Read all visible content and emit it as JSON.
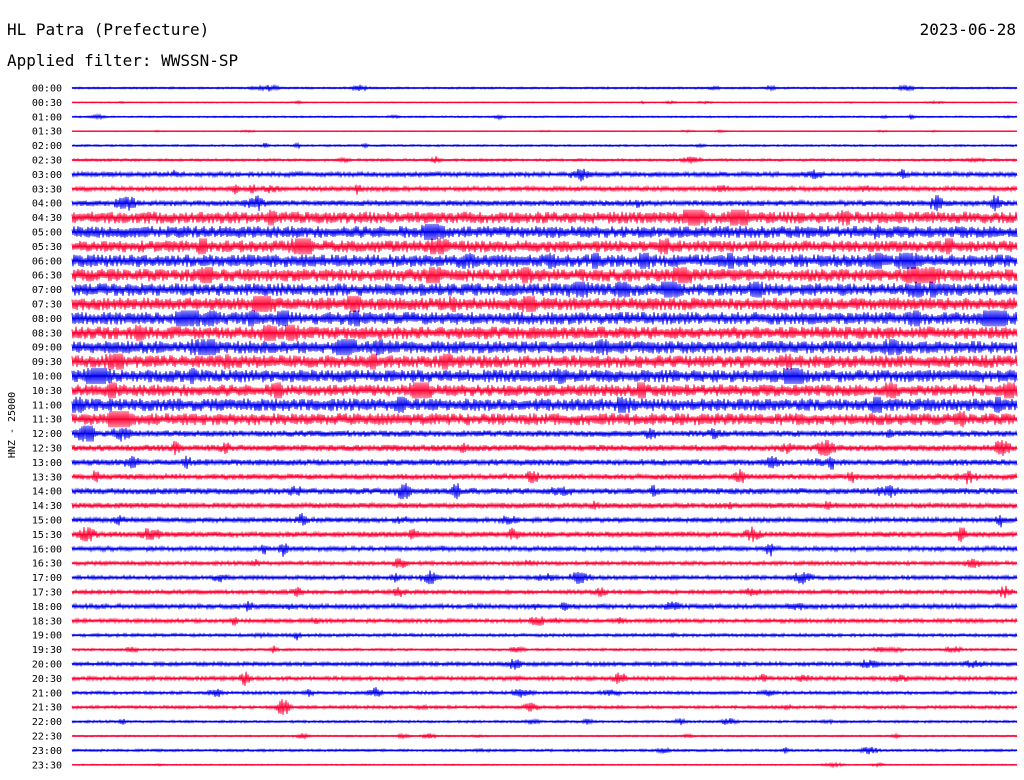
{
  "header": {
    "station": "HL Patra (Prefecture)",
    "date": "2023-06-28",
    "filter": "Applied filter: WWSSN-SP"
  },
  "chart_data": {
    "type": "line",
    "ylabel": "HNZ - 25000",
    "colors": {
      "even_row": "#0000ee",
      "odd_row": "#ff0033"
    },
    "rows": [
      {
        "label": "00:00",
        "amp": 0.12
      },
      {
        "label": "00:30",
        "amp": 0.06
      },
      {
        "label": "01:00",
        "amp": 0.1
      },
      {
        "label": "01:30",
        "amp": 0.05
      },
      {
        "label": "02:00",
        "amp": 0.12
      },
      {
        "label": "02:30",
        "amp": 0.15
      },
      {
        "label": "03:00",
        "amp": 0.3
      },
      {
        "label": "03:30",
        "amp": 0.3
      },
      {
        "label": "04:00",
        "amp": 0.35
      },
      {
        "label": "04:30",
        "amp": 0.75
      },
      {
        "label": "05:00",
        "amp": 0.75
      },
      {
        "label": "05:30",
        "amp": 0.75
      },
      {
        "label": "06:00",
        "amp": 0.8
      },
      {
        "label": "06:30",
        "amp": 0.8
      },
      {
        "label": "07:00",
        "amp": 0.8
      },
      {
        "label": "07:30",
        "amp": 0.8
      },
      {
        "label": "08:00",
        "amp": 0.8
      },
      {
        "label": "08:30",
        "amp": 0.8
      },
      {
        "label": "09:00",
        "amp": 0.8
      },
      {
        "label": "09:30",
        "amp": 0.8
      },
      {
        "label": "10:00",
        "amp": 0.8
      },
      {
        "label": "10:30",
        "amp": 0.75
      },
      {
        "label": "11:00",
        "amp": 0.8
      },
      {
        "label": "11:30",
        "amp": 0.75
      },
      {
        "label": "12:00",
        "amp": 0.4
      },
      {
        "label": "12:30",
        "amp": 0.4
      },
      {
        "label": "13:00",
        "amp": 0.4
      },
      {
        "label": "13:30",
        "amp": 0.35
      },
      {
        "label": "14:00",
        "amp": 0.4
      },
      {
        "label": "14:30",
        "amp": 0.35
      },
      {
        "label": "15:00",
        "amp": 0.3
      },
      {
        "label": "15:30",
        "amp": 0.35
      },
      {
        "label": "16:00",
        "amp": 0.3
      },
      {
        "label": "16:30",
        "amp": 0.25
      },
      {
        "label": "17:00",
        "amp": 0.25
      },
      {
        "label": "17:30",
        "amp": 0.25
      },
      {
        "label": "18:00",
        "amp": 0.3
      },
      {
        "label": "18:30",
        "amp": 0.25
      },
      {
        "label": "19:00",
        "amp": 0.2
      },
      {
        "label": "19:30",
        "amp": 0.15
      },
      {
        "label": "20:00",
        "amp": 0.25
      },
      {
        "label": "20:30",
        "amp": 0.25
      },
      {
        "label": "21:00",
        "amp": 0.2
      },
      {
        "label": "21:30",
        "amp": 0.2
      },
      {
        "label": "22:00",
        "amp": 0.15
      },
      {
        "label": "22:30",
        "amp": 0.1
      },
      {
        "label": "23:00",
        "amp": 0.15
      },
      {
        "label": "23:30",
        "amp": 0.08
      }
    ]
  }
}
